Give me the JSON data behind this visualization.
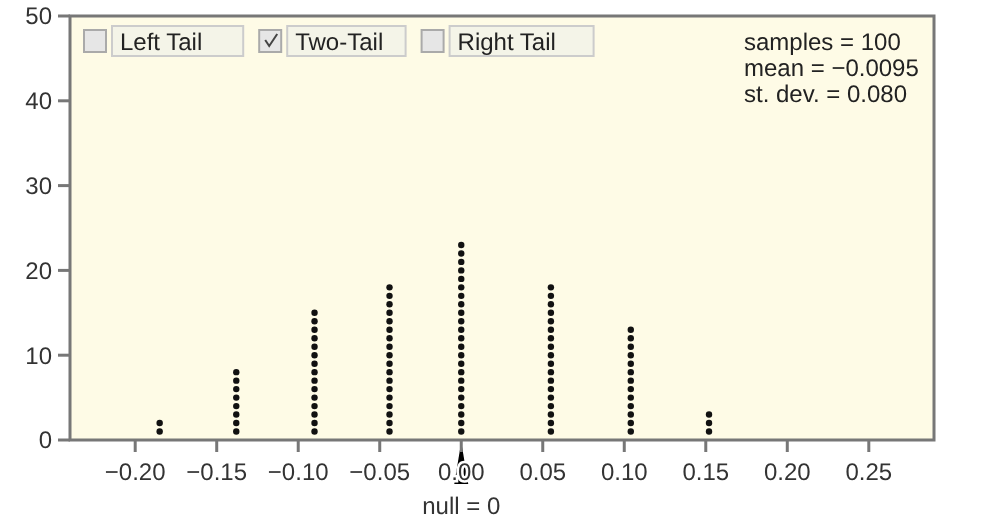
{
  "chart_data": {
    "type": "scatter",
    "x": [
      -0.185,
      -0.185,
      -0.138,
      -0.138,
      -0.138,
      -0.138,
      -0.138,
      -0.138,
      -0.138,
      -0.138,
      -0.09,
      -0.09,
      -0.09,
      -0.09,
      -0.09,
      -0.09,
      -0.09,
      -0.09,
      -0.09,
      -0.09,
      -0.09,
      -0.09,
      -0.09,
      -0.09,
      -0.09,
      -0.044,
      -0.044,
      -0.044,
      -0.044,
      -0.044,
      -0.044,
      -0.044,
      -0.044,
      -0.044,
      -0.044,
      -0.044,
      -0.044,
      -0.044,
      -0.044,
      -0.044,
      -0.044,
      -0.044,
      -0.044,
      0,
      0,
      0,
      0,
      0,
      0,
      0,
      0,
      0,
      0,
      0,
      0,
      0,
      0,
      0,
      0,
      0,
      0,
      0,
      0,
      0,
      0,
      0,
      0.055,
      0.055,
      0.055,
      0.055,
      0.055,
      0.055,
      0.055,
      0.055,
      0.055,
      0.055,
      0.055,
      0.055,
      0.055,
      0.055,
      0.055,
      0.055,
      0.055,
      0.055,
      0.104,
      0.104,
      0.104,
      0.104,
      0.104,
      0.104,
      0.104,
      0.104,
      0.104,
      0.104,
      0.104,
      0.104,
      0.104,
      0.152,
      0.152,
      0.152
    ],
    "values": [
      1,
      2,
      1,
      2,
      3,
      4,
      5,
      6,
      7,
      8,
      1,
      2,
      3,
      4,
      5,
      6,
      7,
      8,
      9,
      10,
      11,
      12,
      13,
      14,
      15,
      1,
      2,
      3,
      4,
      5,
      6,
      7,
      8,
      9,
      10,
      11,
      12,
      13,
      14,
      15,
      16,
      17,
      18,
      1,
      2,
      3,
      4,
      5,
      6,
      7,
      8,
      9,
      10,
      11,
      12,
      13,
      14,
      15,
      16,
      17,
      18,
      19,
      20,
      21,
      22,
      23,
      1,
      2,
      3,
      4,
      5,
      6,
      7,
      8,
      9,
      10,
      11,
      12,
      13,
      14,
      15,
      16,
      17,
      18,
      1,
      2,
      3,
      4,
      5,
      6,
      7,
      8,
      9,
      10,
      11,
      12,
      13,
      1,
      2,
      3
    ],
    "color": "#111111",
    "marker": "circle",
    "xlim": [
      -0.24,
      0.29
    ],
    "xticks": [
      {
        "value": -0.2,
        "label": "−0.20"
      },
      {
        "value": -0.15,
        "label": "−0.15"
      },
      {
        "value": -0.1,
        "label": "−0.10"
      },
      {
        "value": -0.05,
        "label": "−0.05"
      },
      {
        "value": 0,
        "label": "0.00"
      },
      {
        "value": 0.05,
        "label": "0.05"
      },
      {
        "value": 0.1,
        "label": "0.10"
      },
      {
        "value": 0.15,
        "label": "0.15"
      },
      {
        "value": 0.2,
        "label": "0.20"
      },
      {
        "value": 0.25,
        "label": "0.25"
      }
    ],
    "ylim": [
      0,
      50
    ],
    "yticks": [
      0,
      10,
      20,
      30,
      40,
      50
    ],
    "annotations": [
      {
        "text": "null = 0",
        "x": 0,
        "y": 0
      },
      "Left Tail",
      "Two-Tail",
      "Right Tail",
      "samples = 100",
      "mean = −0.0095",
      "st. dev. = 0.080"
    ]
  }
}
